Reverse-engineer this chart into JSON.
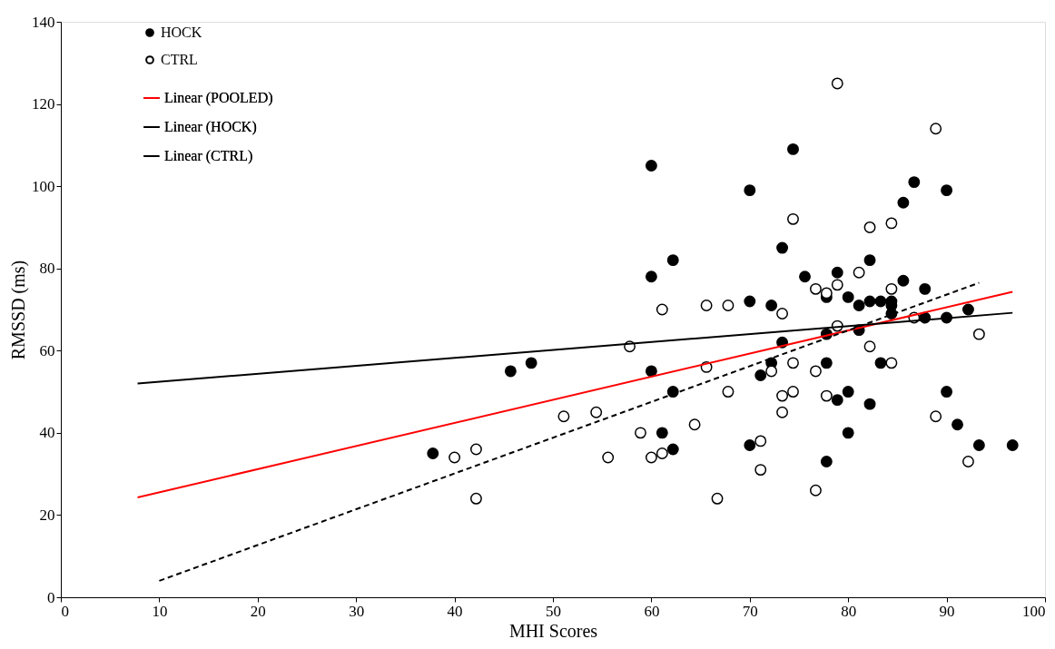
{
  "chart_data": {
    "type": "scatter",
    "xlabel": "MHI Scores",
    "ylabel": "RMSSD (ms)",
    "xlim": [
      0,
      100
    ],
    "xticks": [
      0,
      10,
      20,
      30,
      40,
      50,
      60,
      70,
      80,
      90,
      100
    ],
    "ylim": [
      0,
      140
    ],
    "yticks": [
      0,
      20,
      40,
      60,
      80,
      100,
      120,
      140
    ],
    "grid": false,
    "legend": "top left",
    "series": [
      {
        "name": "HOCK",
        "marker": "circle",
        "color": "#000000",
        "x": [
          37.8,
          45.7,
          47.8,
          60,
          60,
          60,
          61.1,
          62.2,
          62.2,
          62.2,
          70,
          70,
          70,
          71.1,
          72.2,
          72.2,
          73.3,
          73.3,
          74.4,
          75.6,
          77.8,
          77.8,
          77.8,
          77.8,
          78.9,
          78.9,
          80,
          80,
          80,
          81.1,
          81.1,
          82.2,
          82.2,
          82.2,
          83.3,
          83.3,
          84.4,
          84.4,
          84.4,
          85.6,
          85.6,
          86.7,
          87.8,
          87.8,
          90,
          90,
          90,
          91.1,
          92.2,
          93.3,
          96.7
        ],
        "values": [
          35,
          55,
          57,
          105,
          78,
          55,
          40,
          82,
          50,
          36,
          99,
          72,
          37,
          54,
          71,
          57,
          85,
          62,
          109,
          78,
          73,
          64,
          57,
          33,
          79,
          48,
          73,
          50,
          40,
          71,
          65,
          82,
          72,
          47,
          72,
          57,
          72,
          71,
          69,
          96,
          77,
          101,
          75,
          68,
          99,
          68,
          50,
          42,
          70,
          37,
          37
        ]
      },
      {
        "name": "CTRL",
        "marker": "circle",
        "color": "#ffffff",
        "x": [
          40,
          42.2,
          42.2,
          51.1,
          54.4,
          55.6,
          57.8,
          58.9,
          60,
          61.1,
          61.1,
          64.4,
          65.6,
          65.6,
          66.7,
          67.8,
          67.8,
          71.1,
          71.1,
          72.2,
          73.3,
          73.3,
          73.3,
          74.4,
          74.4,
          74.4,
          76.7,
          76.7,
          76.7,
          77.8,
          77.8,
          78.9,
          78.9,
          78.9,
          81.1,
          82.2,
          82.2,
          84.4,
          84.4,
          84.4,
          86.7,
          88.9,
          88.9,
          92.2,
          93.3
        ],
        "values": [
          34,
          36,
          24,
          44,
          45,
          34,
          61,
          40,
          34,
          70,
          35,
          42,
          71,
          56,
          24,
          71,
          50,
          38,
          31,
          55,
          69,
          49,
          45,
          92,
          57,
          50,
          75,
          55,
          26,
          74,
          49,
          125,
          76,
          66,
          79,
          90,
          61,
          91,
          75,
          57,
          68,
          114,
          44,
          33,
          64
        ]
      },
      {
        "name": "Linear (POOLED)",
        "type": "line",
        "color": "#ff0000",
        "marker": "none",
        "line_style": "solid",
        "x": [
          7.8,
          96.7
        ],
        "values": [
          24.3,
          74.3
        ]
      },
      {
        "name": "Linear (HOCK)",
        "type": "line",
        "color": "#000000",
        "marker": "none",
        "line_style": "solid",
        "x": [
          7.8,
          96.7
        ],
        "values": [
          52,
          69.2
        ]
      },
      {
        "name": "Linear (CTRL)",
        "type": "line",
        "color": "#000000",
        "marker": "none",
        "line_style": "dashed",
        "x": [
          10,
          93.3
        ],
        "values": [
          4,
          76.5
        ]
      }
    ]
  }
}
